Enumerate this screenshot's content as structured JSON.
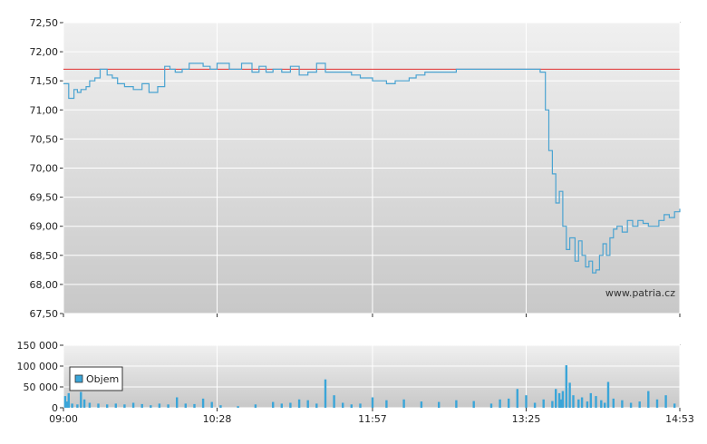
{
  "watermark": "www.patria.cz",
  "colors": {
    "price_line": "#4aa3d1",
    "reference_line": "#e03030",
    "volume_bar": "#3aa5d8",
    "grid": "#ffffff",
    "panel_top": "#f0f0f0",
    "panel_bottom": "#c8c8c8"
  },
  "chart_data": [
    {
      "type": "line",
      "ylim": [
        67.5,
        72.5
      ],
      "yticks": [
        72.5,
        72.0,
        71.5,
        71.0,
        70.5,
        70.0,
        69.5,
        69.0,
        68.5,
        68.0,
        67.5
      ],
      "ytick_labels": [
        "72,50",
        "72,00",
        "71,50",
        "71,00",
        "70,50",
        "70,00",
        "69,50",
        "69,00",
        "68,50",
        "68,00",
        "67,50"
      ],
      "xlim": [
        "09:00",
        "14:53"
      ],
      "reference_line": 71.7,
      "series": [
        {
          "x": [
            "09:00",
            "09:03",
            "09:06",
            "09:08",
            "09:10",
            "09:13",
            "09:15",
            "09:18",
            "09:21",
            "09:25",
            "09:28",
            "09:31",
            "09:35",
            "09:40",
            "09:45",
            "09:49",
            "09:54",
            "09:58",
            "10:01",
            "10:04",
            "10:08",
            "10:12",
            "10:16",
            "10:20",
            "10:24",
            "10:28",
            "10:35",
            "10:42",
            "10:48",
            "10:52",
            "10:56",
            "11:00",
            "11:05",
            "11:10",
            "11:15",
            "11:20",
            "11:25",
            "11:30",
            "11:35",
            "11:40",
            "11:45",
            "11:50",
            "11:57",
            "12:05",
            "12:10",
            "12:14",
            "12:18",
            "12:22",
            "12:27",
            "12:32",
            "12:38",
            "12:45",
            "12:52",
            "13:00",
            "13:10",
            "13:20",
            "13:28",
            "13:33",
            "13:36",
            "13:38",
            "13:40",
            "13:42",
            "13:44",
            "13:46",
            "13:48",
            "13:50",
            "13:53",
            "13:55",
            "13:57",
            "13:59",
            "14:01",
            "14:03",
            "14:05",
            "14:07",
            "14:09",
            "14:11",
            "14:13",
            "14:15",
            "14:17",
            "14:20",
            "14:23",
            "14:26",
            "14:29",
            "14:32",
            "14:35",
            "14:38",
            "14:41",
            "14:44",
            "14:47",
            "14:50",
            "14:53"
          ],
          "y": [
            71.45,
            71.2,
            71.35,
            71.3,
            71.35,
            71.4,
            71.5,
            71.55,
            71.7,
            71.6,
            71.55,
            71.45,
            71.4,
            71.35,
            71.45,
            71.3,
            71.4,
            71.75,
            71.7,
            71.65,
            71.7,
            71.8,
            71.8,
            71.75,
            71.7,
            71.8,
            71.7,
            71.8,
            71.65,
            71.75,
            71.65,
            71.7,
            71.65,
            71.75,
            71.6,
            71.65,
            71.8,
            71.65,
            71.65,
            71.65,
            71.6,
            71.55,
            71.5,
            71.45,
            71.5,
            71.5,
            71.55,
            71.6,
            71.65,
            71.65,
            71.65,
            71.7,
            71.7,
            71.7,
            71.7,
            71.7,
            71.7,
            71.65,
            71.0,
            70.3,
            69.9,
            69.4,
            69.6,
            69.0,
            68.6,
            68.8,
            68.4,
            68.75,
            68.5,
            68.3,
            68.4,
            68.2,
            68.25,
            68.5,
            68.7,
            68.5,
            68.8,
            68.95,
            69.0,
            68.9,
            69.1,
            69.0,
            69.1,
            69.05,
            69.0,
            69.0,
            69.1,
            69.2,
            69.15,
            69.25,
            69.3
          ]
        }
      ]
    },
    {
      "type": "bar",
      "legend_entry": "Objem",
      "legend_position": "left",
      "ylim": [
        0,
        150000
      ],
      "yticks": [
        150000,
        100000,
        50000,
        0
      ],
      "ytick_labels": [
        "150 000",
        "100 000",
        "50 000",
        "0"
      ],
      "x_labels": [
        "09:00",
        "10:28",
        "11:57",
        "13:25",
        "14:53"
      ],
      "x": [
        "09:01",
        "09:02",
        "09:03",
        "09:05",
        "09:08",
        "09:10",
        "09:12",
        "09:15",
        "09:20",
        "09:25",
        "09:30",
        "09:35",
        "09:40",
        "09:45",
        "09:50",
        "09:55",
        "10:00",
        "10:05",
        "10:10",
        "10:15",
        "10:20",
        "10:25",
        "10:30",
        "10:40",
        "10:50",
        "11:00",
        "11:05",
        "11:10",
        "11:15",
        "11:20",
        "11:25",
        "11:30",
        "11:35",
        "11:40",
        "11:45",
        "11:50",
        "11:57",
        "12:05",
        "12:15",
        "12:25",
        "12:35",
        "12:45",
        "12:55",
        "13:05",
        "13:10",
        "13:15",
        "13:20",
        "13:25",
        "13:30",
        "13:35",
        "13:40",
        "13:42",
        "13:44",
        "13:45",
        "13:46",
        "13:48",
        "13:50",
        "13:52",
        "13:55",
        "13:57",
        "14:00",
        "14:02",
        "14:05",
        "14:08",
        "14:10",
        "14:12",
        "14:15",
        "14:20",
        "14:25",
        "14:30",
        "14:35",
        "14:40",
        "14:45",
        "14:50"
      ],
      "values": [
        28000,
        15000,
        35000,
        10000,
        8000,
        38000,
        20000,
        12000,
        10000,
        8000,
        10000,
        8000,
        12000,
        9000,
        6000,
        10000,
        8000,
        25000,
        10000,
        9000,
        22000,
        14000,
        6000,
        4000,
        8000,
        14000,
        10000,
        12000,
        20000,
        18000,
        10000,
        68000,
        30000,
        12000,
        8000,
        10000,
        25000,
        18000,
        20000,
        15000,
        14000,
        18000,
        16000,
        10000,
        20000,
        22000,
        45000,
        30000,
        12000,
        20000,
        16000,
        45000,
        35000,
        20000,
        40000,
        102000,
        60000,
        30000,
        20000,
        25000,
        15000,
        35000,
        28000,
        18000,
        12000,
        62000,
        22000,
        18000,
        12000,
        15000,
        40000,
        20000,
        30000,
        10000
      ]
    }
  ]
}
